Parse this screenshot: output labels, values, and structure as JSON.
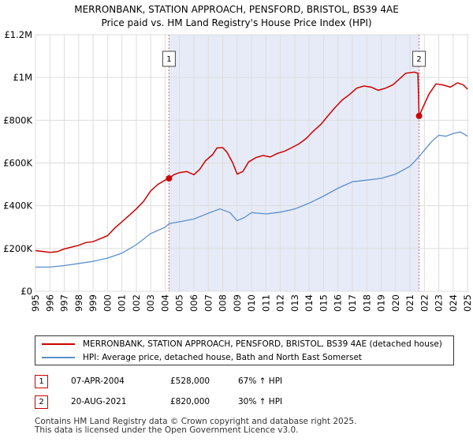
{
  "chart_data": {
    "type": "line",
    "title": "MERRONBANK, STATION APPROACH, PENSFORD, BRISTOL, BS39 4AE",
    "subtitle": "Price paid vs. HM Land Registry's House Price Index (HPI)",
    "xlim": [
      1995,
      2025.1
    ],
    "ylim": [
      0,
      1200000
    ],
    "x_ticks": [
      "1995",
      "1996",
      "1997",
      "1998",
      "1999",
      "2000",
      "2001",
      "2002",
      "2003",
      "2004",
      "2005",
      "2006",
      "2007",
      "2008",
      "2009",
      "2010",
      "2011",
      "2012",
      "2013",
      "2014",
      "2015",
      "2016",
      "2017",
      "2018",
      "2019",
      "2020",
      "2021",
      "2022",
      "2023",
      "2024",
      "2025"
    ],
    "y_ticks": [
      {
        "value": 0,
        "label": "£0"
      },
      {
        "value": 200000,
        "label": "£200K"
      },
      {
        "value": 400000,
        "label": "£400K"
      },
      {
        "value": 600000,
        "label": "£600K"
      },
      {
        "value": 800000,
        "label": "£800K"
      },
      {
        "value": 1000000,
        "label": "£1M"
      },
      {
        "value": 1200000,
        "label": "£1.2M"
      }
    ],
    "shaded_range": [
      2004.27,
      2021.63
    ],
    "series": [
      {
        "name": "MERRONBANK, STATION APPROACH, PENSFORD, BRISTOL, BS39 4AE (detached house)",
        "color": "#cc0000",
        "points": [
          [
            1995,
            190000
          ],
          [
            1996,
            182000
          ],
          [
            1996.5,
            185000
          ],
          [
            1997,
            198000
          ],
          [
            1998,
            215000
          ],
          [
            1998.5,
            228000
          ],
          [
            1999,
            232000
          ],
          [
            2000,
            260000
          ],
          [
            2000.5,
            295000
          ],
          [
            2001,
            325000
          ],
          [
            2001.5,
            355000
          ],
          [
            2002,
            385000
          ],
          [
            2002.5,
            420000
          ],
          [
            2003,
            470000
          ],
          [
            2003.5,
            500000
          ],
          [
            2004,
            520000
          ],
          [
            2004.27,
            528000
          ],
          [
            2004.6,
            545000
          ],
          [
            2005,
            555000
          ],
          [
            2005.5,
            560000
          ],
          [
            2006,
            545000
          ],
          [
            2006.4,
            570000
          ],
          [
            2006.8,
            610000
          ],
          [
            2007.3,
            640000
          ],
          [
            2007.6,
            670000
          ],
          [
            2008,
            672000
          ],
          [
            2008.3,
            650000
          ],
          [
            2008.7,
            600000
          ],
          [
            2009,
            548000
          ],
          [
            2009.4,
            560000
          ],
          [
            2009.8,
            605000
          ],
          [
            2010.3,
            625000
          ],
          [
            2010.8,
            635000
          ],
          [
            2011.3,
            628000
          ],
          [
            2011.8,
            645000
          ],
          [
            2012.3,
            655000
          ],
          [
            2012.8,
            672000
          ],
          [
            2013.3,
            690000
          ],
          [
            2013.8,
            715000
          ],
          [
            2014.3,
            750000
          ],
          [
            2014.8,
            780000
          ],
          [
            2015.3,
            820000
          ],
          [
            2015.8,
            860000
          ],
          [
            2016.3,
            895000
          ],
          [
            2016.8,
            920000
          ],
          [
            2017.3,
            950000
          ],
          [
            2017.8,
            960000
          ],
          [
            2018.3,
            955000
          ],
          [
            2018.8,
            940000
          ],
          [
            2019.3,
            950000
          ],
          [
            2019.8,
            965000
          ],
          [
            2020.3,
            995000
          ],
          [
            2020.7,
            1020000
          ],
          [
            2021.3,
            1025000
          ],
          [
            2021.55,
            1020000
          ],
          [
            2021.63,
            820000
          ],
          [
            2021.9,
            860000
          ],
          [
            2022.3,
            920000
          ],
          [
            2022.8,
            970000
          ],
          [
            2023.3,
            965000
          ],
          [
            2023.8,
            955000
          ],
          [
            2024.3,
            975000
          ],
          [
            2024.7,
            965000
          ],
          [
            2025,
            945000
          ]
        ]
      },
      {
        "name": "HPI: Average price, detached house, Bath and North East Somerset",
        "color": "#5b8fcc",
        "points": [
          [
            1995,
            113000
          ],
          [
            1996,
            113000
          ],
          [
            1997,
            120000
          ],
          [
            1998,
            130000
          ],
          [
            1999,
            140000
          ],
          [
            2000,
            155000
          ],
          [
            2001,
            178000
          ],
          [
            2002,
            218000
          ],
          [
            2003,
            270000
          ],
          [
            2004,
            300000
          ],
          [
            2004.27,
            316000
          ],
          [
            2005,
            325000
          ],
          [
            2006,
            338000
          ],
          [
            2007,
            365000
          ],
          [
            2007.8,
            385000
          ],
          [
            2008.5,
            368000
          ],
          [
            2009,
            330000
          ],
          [
            2009.5,
            345000
          ],
          [
            2010,
            368000
          ],
          [
            2011,
            362000
          ],
          [
            2012,
            370000
          ],
          [
            2013,
            385000
          ],
          [
            2014,
            412000
          ],
          [
            2015,
            445000
          ],
          [
            2016,
            482000
          ],
          [
            2017,
            512000
          ],
          [
            2018,
            520000
          ],
          [
            2019,
            528000
          ],
          [
            2020,
            548000
          ],
          [
            2021,
            585000
          ],
          [
            2021.63,
            630000
          ],
          [
            2022,
            660000
          ],
          [
            2022.5,
            700000
          ],
          [
            2023,
            730000
          ],
          [
            2023.5,
            725000
          ],
          [
            2024,
            738000
          ],
          [
            2024.5,
            745000
          ],
          [
            2025,
            725000
          ]
        ]
      }
    ],
    "sale_markers": [
      {
        "id": "1",
        "x": 2004.27,
        "y": 528000
      },
      {
        "id": "2",
        "x": 2021.63,
        "y": 820000
      }
    ]
  },
  "legend": {
    "series_1": "MERRONBANK, STATION APPROACH, PENSFORD, BRISTOL, BS39 4AE (detached house)",
    "series_2": "HPI: Average price, detached house, Bath and North East Somerset"
  },
  "sales": [
    {
      "num": "1",
      "date": "07-APR-2004",
      "price": "£528,000",
      "hpi": "67% ↑ HPI"
    },
    {
      "num": "2",
      "date": "20-AUG-2021",
      "price": "£820,000",
      "hpi": "30% ↑ HPI"
    }
  ],
  "footer": {
    "line1": "Contains HM Land Registry data © Crown copyright and database right 2025.",
    "line2": "This data is licensed under the Open Government Licence v3.0."
  }
}
